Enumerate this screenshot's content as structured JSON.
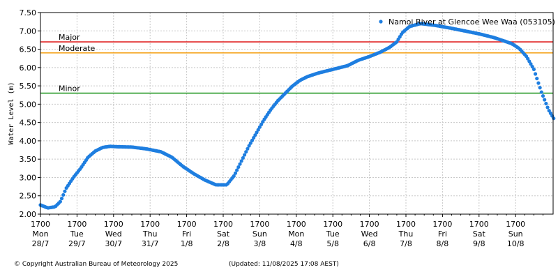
{
  "chart_data": {
    "type": "scatter",
    "legend": "Namoi River at Glencoe Wee Waa (053105)",
    "legend_position": "top-right",
    "ylabel": "Water Level (m)",
    "ylim": [
      2.0,
      7.5
    ],
    "yticks": [
      "2.00",
      "2.50",
      "3.00",
      "3.50",
      "4.00",
      "4.50",
      "5.00",
      "5.50",
      "6.00",
      "6.50",
      "7.00",
      "7.50"
    ],
    "grid": true,
    "x_unit": "days from Mon 28/7 17:00",
    "xlim": [
      0,
      14.1
    ],
    "xticks": [
      {
        "time": "1700",
        "day": "Mon",
        "date": "28/7"
      },
      {
        "time": "1700",
        "day": "Tue",
        "date": "29/7"
      },
      {
        "time": "1700",
        "day": "Wed",
        "date": "30/7"
      },
      {
        "time": "1700",
        "day": "Thu",
        "date": "31/7"
      },
      {
        "time": "1700",
        "day": "Fri",
        "date": "1/8"
      },
      {
        "time": "1700",
        "day": "Sat",
        "date": "2/8"
      },
      {
        "time": "1700",
        "day": "Sun",
        "date": "3/8"
      },
      {
        "time": "1700",
        "day": "Mon",
        "date": "4/8"
      },
      {
        "time": "1700",
        "day": "Tue",
        "date": "5/8"
      },
      {
        "time": "1700",
        "day": "Wed",
        "date": "6/8"
      },
      {
        "time": "1700",
        "day": "Thu",
        "date": "7/8"
      },
      {
        "time": "1700",
        "day": "Fri",
        "date": "8/8"
      },
      {
        "time": "1700",
        "day": "Sat",
        "date": "9/8"
      },
      {
        "time": "1700",
        "day": "Sun",
        "date": "10/8"
      }
    ],
    "thresholds": [
      {
        "name": "Major",
        "value": 6.7,
        "color": "#e02020"
      },
      {
        "name": "Moderate",
        "value": 6.4,
        "color": "#f5a623"
      },
      {
        "name": "Minor",
        "value": 5.3,
        "color": "#2a9a2a"
      }
    ],
    "series_color": "#1e7ee0",
    "x": [
      0,
      0.2,
      0.4,
      0.55,
      0.7,
      0.9,
      1.1,
      1.3,
      1.5,
      1.7,
      1.9,
      2.1,
      2.5,
      2.9,
      3.3,
      3.6,
      3.9,
      4.2,
      4.5,
      4.8,
      5.1,
      5.3,
      5.5,
      5.7,
      5.9,
      6.1,
      6.3,
      6.5,
      6.7,
      6.9,
      7.1,
      7.3,
      7.6,
      8.0,
      8.4,
      8.7,
      9.0,
      9.3,
      9.55,
      9.75,
      9.9,
      10.1,
      10.4,
      10.8,
      11.2,
      11.6,
      12.0,
      12.4,
      12.7,
      12.9,
      13.1,
      13.3,
      13.5,
      13.7,
      13.9,
      14.05
    ],
    "y": [
      2.25,
      2.17,
      2.2,
      2.35,
      2.7,
      3.0,
      3.25,
      3.55,
      3.72,
      3.82,
      3.85,
      3.84,
      3.83,
      3.78,
      3.7,
      3.55,
      3.3,
      3.1,
      2.93,
      2.8,
      2.8,
      3.05,
      3.45,
      3.85,
      4.2,
      4.55,
      4.85,
      5.1,
      5.3,
      5.5,
      5.65,
      5.75,
      5.85,
      5.95,
      6.05,
      6.2,
      6.3,
      6.42,
      6.55,
      6.7,
      6.95,
      7.12,
      7.2,
      7.15,
      7.08,
      7.0,
      6.92,
      6.82,
      6.72,
      6.65,
      6.52,
      6.3,
      5.95,
      5.35,
      4.85,
      4.6
    ]
  },
  "footer": {
    "copyright": "© Copyright Australian Bureau of Meteorology 2025",
    "updated": "(Updated: 11/08/2025 17:08 AEST)"
  }
}
